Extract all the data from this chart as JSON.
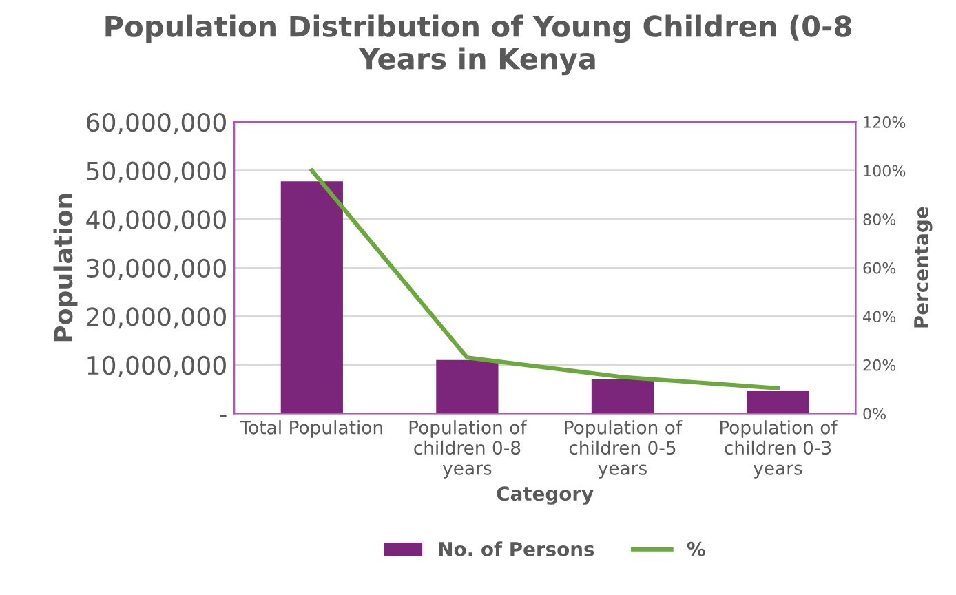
{
  "chart_data": {
    "type": "bar",
    "title": "Population Distribution of Young Children (0-8\nYears in Kenya",
    "xlabel": "Category",
    "ylabel": "Population",
    "y2label": "Percentage",
    "categories": [
      "Total Population",
      "Population of\nchildren 0-8\nyears",
      "Population of\nchildren 0-5\nyears",
      "Population of\nchildren 0-3\nyears"
    ],
    "series": [
      {
        "name": "No. of Persons",
        "color": "#7b267a",
        "values": [
          47800000,
          11000000,
          7000000,
          4600000
        ]
      },
      {
        "name": "%",
        "type": "line",
        "axis": "y2",
        "color": "#6aaa3a",
        "values": [
          100,
          23,
          15,
          10.4
        ]
      }
    ],
    "ylim": [
      0,
      60000000
    ],
    "yticks": [
      {
        "value": 0,
        "label": "-"
      },
      {
        "value": 10000000,
        "label": "10,000,000"
      },
      {
        "value": 20000000,
        "label": "20,000,000"
      },
      {
        "value": 30000000,
        "label": "30,000,000"
      },
      {
        "value": 40000000,
        "label": "40,000,000"
      },
      {
        "value": 50000000,
        "label": "50,000,000"
      },
      {
        "value": 60000000,
        "label": "60,000,000"
      }
    ],
    "y2lim": [
      0,
      120
    ],
    "y2ticks": [
      {
        "value": 0,
        "label": "0%"
      },
      {
        "value": 20,
        "label": "20%"
      },
      {
        "value": 40,
        "label": "40%"
      },
      {
        "value": 60,
        "label": "60%"
      },
      {
        "value": 80,
        "label": "80%"
      },
      {
        "value": 100,
        "label": "100%"
      },
      {
        "value": 120,
        "label": "120%"
      }
    ],
    "grid": "y",
    "legend": "bottom",
    "marker": "none",
    "line_style": "solid"
  }
}
